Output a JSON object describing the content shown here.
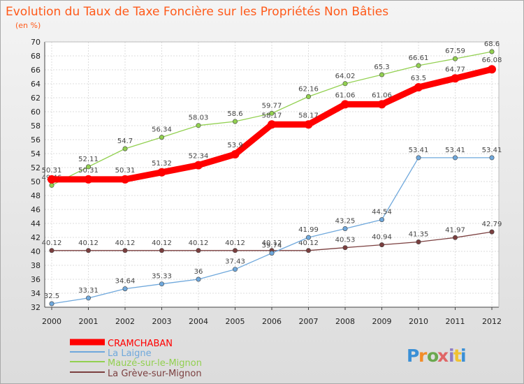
{
  "chart_data": {
    "type": "line",
    "title": "Evolution du Taux de Taxe Foncière sur les Propriétés Non Bâties",
    "subtitle": "(en %)",
    "xlabel": "",
    "ylabel": "",
    "x": [
      "2000",
      "2001",
      "2002",
      "2003",
      "2004",
      "2005",
      "2006",
      "2007",
      "2008",
      "2009",
      "2010",
      "2011",
      "2012"
    ],
    "ylim": [
      32,
      70
    ],
    "yticks": [
      32,
      34,
      36,
      38,
      40,
      42,
      44,
      46,
      48,
      50,
      52,
      54,
      56,
      58,
      60,
      62,
      64,
      66,
      68,
      70
    ],
    "grid": true,
    "legend_position": "bottom-left",
    "series": [
      {
        "name": "CRAMCHABAN",
        "color": "#ff0000",
        "values": [
          50.31,
          50.31,
          50.31,
          51.32,
          52.34,
          53.9,
          58.17,
          58.17,
          61.06,
          61.06,
          63.5,
          64.77,
          66.08
        ],
        "labels": [
          "50.31",
          "50.31",
          "50.31",
          "51.32",
          "52.34",
          "53.9",
          "58.17",
          "58.17",
          "61.06",
          "61.06",
          "63.5",
          "64.77",
          "66.08"
        ]
      },
      {
        "name": "La Laigne",
        "color": "#6fa8dc",
        "values": [
          32.5,
          33.31,
          34.64,
          35.33,
          36,
          37.43,
          39.74,
          41.99,
          43.25,
          44.54,
          53.41,
          53.41,
          53.41
        ],
        "labels": [
          "32.5",
          "33.31",
          "34.64",
          "35.33",
          "36",
          "37.43",
          "39.74",
          "41.99",
          "43.25",
          "44.54",
          "53.41",
          "53.41",
          "53.41"
        ]
      },
      {
        "name": "Mauzé-sur-le-Mignon",
        "color": "#92d050",
        "values": [
          49.46,
          52.11,
          54.7,
          56.34,
          58.03,
          58.6,
          59.77,
          62.16,
          64.02,
          65.3,
          66.61,
          67.59,
          68.6
        ],
        "labels": [
          "49.46",
          "52.11",
          "54.7",
          "56.34",
          "58.03",
          "58.6",
          "59.77",
          "62.16",
          "64.02",
          "65.3",
          "66.61",
          "67.59",
          "68.6"
        ]
      },
      {
        "name": "La Grève-sur-Mignon",
        "color": "#7b3f3f",
        "values": [
          40.12,
          40.12,
          40.12,
          40.12,
          40.12,
          40.12,
          40.12,
          40.12,
          40.53,
          40.94,
          41.35,
          41.97,
          42.79
        ],
        "labels": [
          "40.12",
          "40.12",
          "40.12",
          "40.12",
          "40.12",
          "40.12",
          "40.12",
          "40.12",
          "40.53",
          "40.94",
          "41.35",
          "41.97",
          "42.79"
        ]
      }
    ]
  },
  "logo": {
    "text": "Proxiti",
    "letters": [
      "P",
      "r",
      "o",
      "x",
      "i",
      "t",
      "i"
    ],
    "colors": [
      "#3a8fd6",
      "#f28c28",
      "#6aa84f",
      "#e06666",
      "#8e7cc3",
      "#f1c232",
      "#3a8fd6"
    ]
  }
}
